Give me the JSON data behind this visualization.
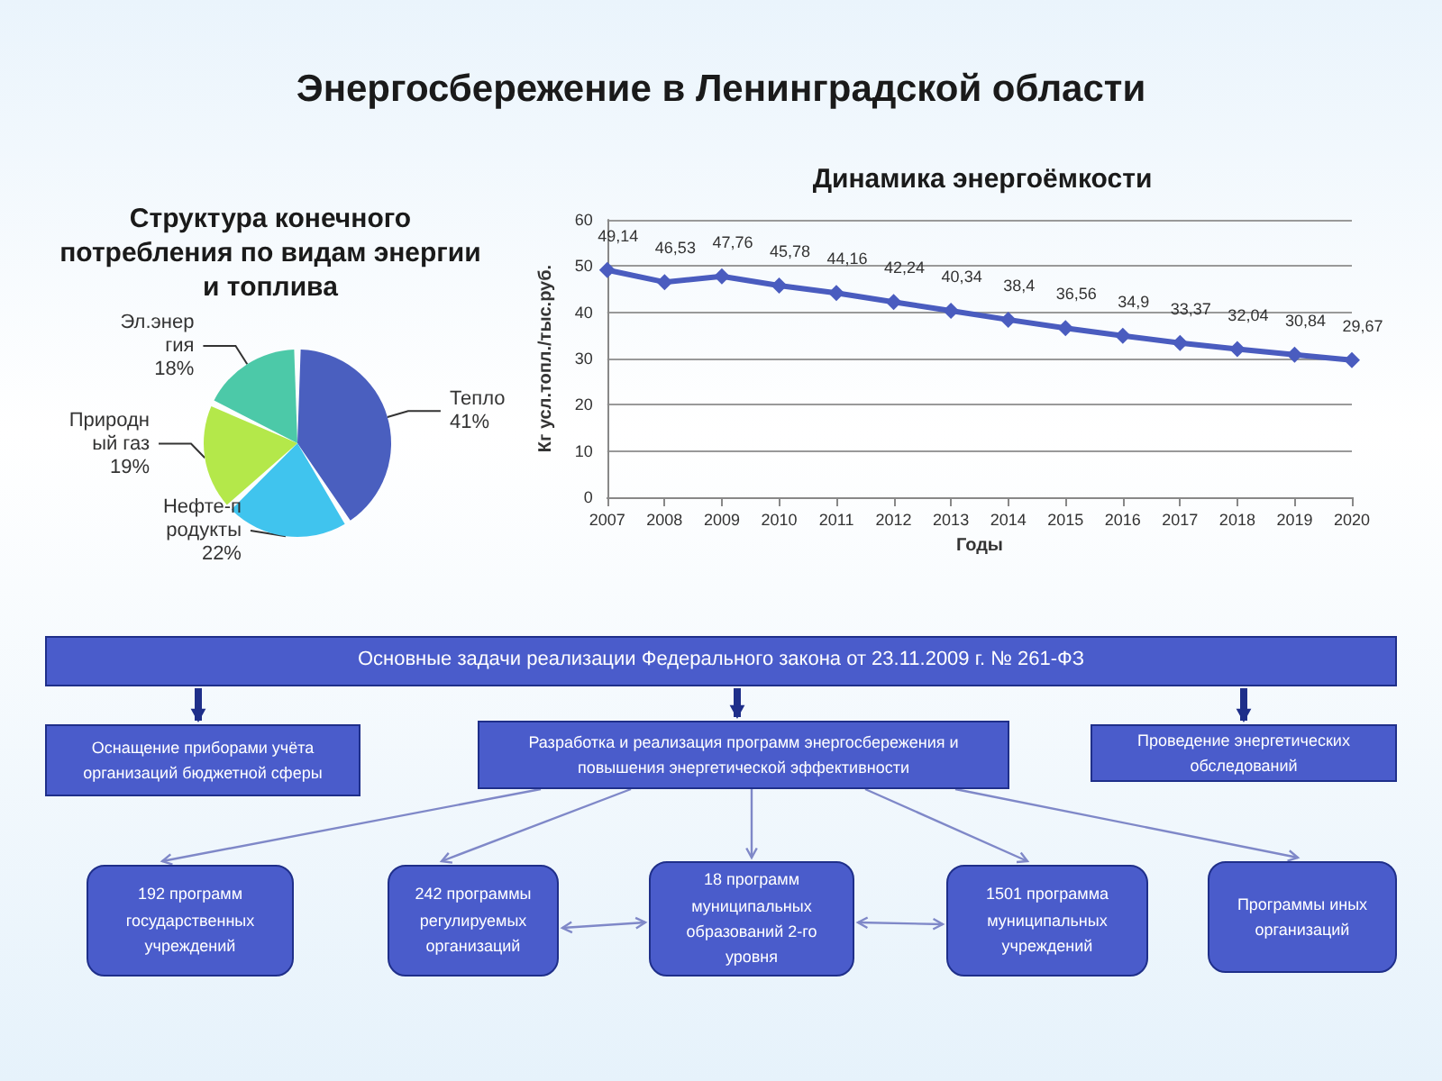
{
  "chart_data": [
    {
      "type": "other",
      "title": "Энергосбережение в Ленинградской области"
    },
    {
      "type": "pie",
      "title": "Структура конечного потребления по видам энергии и топлива",
      "categories": [
        "Тепло",
        "Нефте-продукты",
        "Природный газ",
        "Эл.энергия"
      ],
      "values": [
        41,
        22,
        19,
        18
      ],
      "value_labels": [
        "41%",
        "22%",
        "19%",
        "18%"
      ],
      "colors": [
        "#4a5fbf",
        "#40c4ee",
        "#b4e84a",
        "#4cc9a8"
      ],
      "legend": false
    },
    {
      "type": "line",
      "title": "Динамика энергоёмкости",
      "xlabel": "Годы",
      "ylabel": "Кг усл.топл./тыс.руб.",
      "categories": [
        "2007",
        "2008",
        "2009",
        "2010",
        "2011",
        "2012",
        "2013",
        "2014",
        "2015",
        "2016",
        "2017",
        "2018",
        "2019",
        "2020"
      ],
      "series": [
        {
          "color": "#4a5cbf",
          "values": [
            49.14,
            46.53,
            47.76,
            45.78,
            44.16,
            42.24,
            40.34,
            38.4,
            36.56,
            34.9,
            33.37,
            32.04,
            30.84,
            29.67
          ],
          "value_labels": [
            "49,14",
            "46,53",
            "47,76",
            "45,78",
            "44,16",
            "42,24",
            "40,34",
            "38,4",
            "36,56",
            "34,9",
            "33,37",
            "32,04",
            "30,84",
            "29,67"
          ]
        }
      ],
      "ylim": [
        0,
        60
      ],
      "yticks": [
        0,
        10,
        20,
        30,
        40,
        50,
        60
      ],
      "grid": "y",
      "marker": "diamond",
      "line_style": "solid",
      "legend": false
    },
    {
      "type": "other",
      "annotations": [
        "Основные задачи реализации Федерального закона от 23.11.2009 г. № 261-ФЗ",
        "Оснащение приборами учёта организаций бюджетной сферы",
        "Разработка и реализация программ энергосбережения и повышения энергетической эффективности",
        "Проведение энергетических обследований",
        "192 программ государственных учреждений",
        "242 программы регулируемых организаций",
        "18 программ муниципальных образований 2-го уровня",
        "1501 программа муниципальных учреждений",
        "Программы иных организаций"
      ]
    }
  ]
}
